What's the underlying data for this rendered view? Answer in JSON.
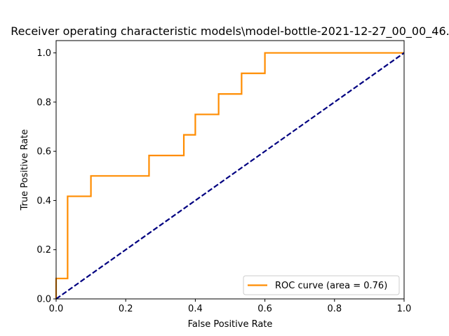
{
  "chart_data": {
    "type": "line",
    "title": "Receiver operating characteristic models\\model-bottle-2021-12-27_00_00_46.",
    "xlabel": "False Positive Rate",
    "ylabel": "True Positive Rate",
    "xlim": [
      0.0,
      1.0
    ],
    "ylim": [
      0.0,
      1.05
    ],
    "xticks": [
      "0.0",
      "0.2",
      "0.4",
      "0.6",
      "0.8",
      "1.0"
    ],
    "yticks": [
      "0.0",
      "0.2",
      "0.4",
      "0.6",
      "0.8",
      "1.0"
    ],
    "grid": false,
    "legend_position": "lower-right",
    "series": [
      {
        "name": "ROC curve (area = 0.76)",
        "color": "#ff8c00",
        "style": "solid",
        "x": [
          0.0,
          0.0,
          0.033,
          0.033,
          0.1,
          0.1,
          0.267,
          0.267,
          0.367,
          0.367,
          0.4,
          0.4,
          0.467,
          0.467,
          0.533,
          0.533,
          0.6,
          0.6,
          1.0
        ],
        "y": [
          0.0,
          0.083,
          0.083,
          0.417,
          0.417,
          0.5,
          0.5,
          0.583,
          0.583,
          0.667,
          0.667,
          0.75,
          0.75,
          0.833,
          0.833,
          0.917,
          0.917,
          1.0,
          1.0
        ]
      },
      {
        "color": "#000080",
        "style": "dashed",
        "x": [
          0.0,
          1.0
        ],
        "y": [
          0.0,
          1.0
        ]
      }
    ]
  }
}
